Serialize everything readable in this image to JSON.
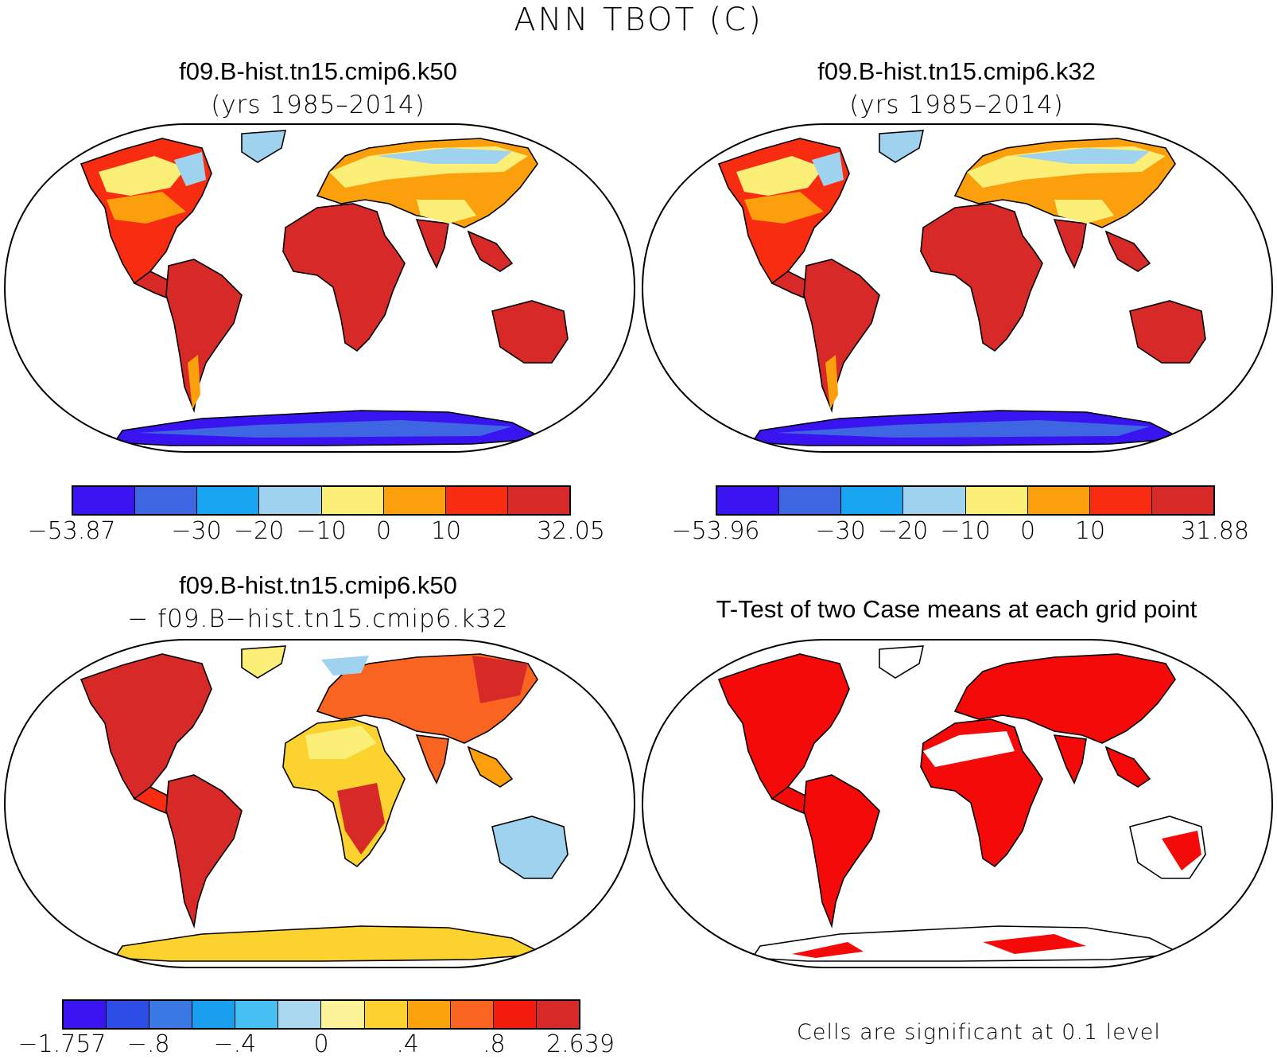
{
  "figure": {
    "title": "ANN TBOT (C)",
    "panels": [
      {
        "id": "k50",
        "title": "f09.B-hist.tn15.cmip6.k50",
        "subtitle": "(yrs 1985–2014)"
      },
      {
        "id": "k32",
        "title": "f09.B-hist.tn15.cmip6.k32",
        "subtitle": "(yrs 1985–2014)"
      },
      {
        "id": "diff",
        "title": "f09.B-hist.tn15.cmip6.k50",
        "subtitle": "− f09.B−hist.tn15.cmip6.k32"
      },
      {
        "id": "ttest",
        "title": "T-Test of two Case means at each grid point",
        "subtitle": ""
      }
    ],
    "note": "Cells are significant at 0.1 level"
  },
  "colorbars": {
    "k50": {
      "colors": [
        "#3a14f0",
        "#3e66e2",
        "#1aa5f2",
        "#9fd2ee",
        "#fbef78",
        "#fb9f0c",
        "#f82c10",
        "#d72a28"
      ],
      "labels": [
        "−53.87",
        "−30",
        "−20",
        "−10",
        "0",
        "10",
        "32.05"
      ],
      "label_edges": [
        0,
        2,
        3,
        4,
        5,
        6,
        8
      ]
    },
    "k32": {
      "colors": [
        "#3a14f0",
        "#3e66e2",
        "#1aa5f2",
        "#9fd2ee",
        "#fbef78",
        "#fb9f0c",
        "#f82c10",
        "#d72a28"
      ],
      "labels": [
        "−53.96",
        "−30",
        "−20",
        "−10",
        "0",
        "10",
        "31.88"
      ],
      "label_edges": [
        0,
        2,
        3,
        4,
        5,
        6,
        8
      ]
    },
    "diff": {
      "colors": [
        "#3a14f0",
        "#2c4ee6",
        "#3a78e4",
        "#1a9ef0",
        "#46c0f2",
        "#a9d8ef",
        "#fdf49a",
        "#fbd22e",
        "#fba20c",
        "#f96420",
        "#f31c0c",
        "#d72a28"
      ],
      "labels": [
        "−1.757",
        "−.8",
        "−.4",
        "0",
        ".4",
        ".8",
        "2.639"
      ],
      "label_edges": [
        0,
        2,
        4,
        6,
        8,
        10,
        12
      ]
    }
  },
  "map_colors": {
    "ocean": "#ffffff",
    "warm": "#d72a28",
    "mid": "#f82c10",
    "mild": "#fb9f0c",
    "cool": "#fbef78",
    "cold": "#9fd2ee",
    "ice": "#3a14f0",
    "sig": "#f50a0a",
    "diff_pos": "#f96420",
    "diff_low": "#fbd22e"
  }
}
